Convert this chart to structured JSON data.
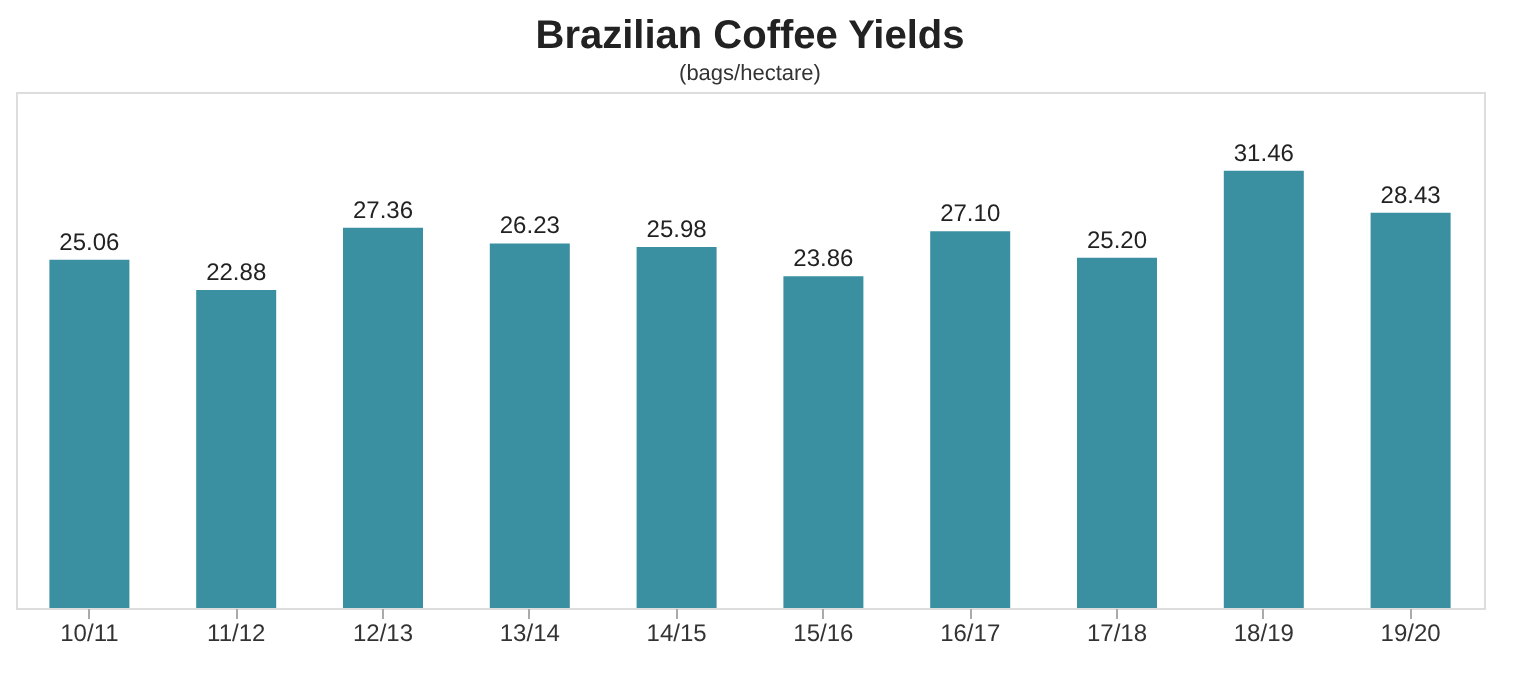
{
  "chart_data": {
    "type": "bar",
    "title": "Brazilian Coffee Yields",
    "subtitle": "(bags/hectare)",
    "categories": [
      "10/11",
      "11/12",
      "12/13",
      "13/14",
      "14/15",
      "15/16",
      "16/17",
      "17/18",
      "18/19",
      "19/20"
    ],
    "values": [
      25.06,
      22.88,
      27.36,
      26.23,
      25.98,
      23.86,
      27.1,
      25.2,
      31.46,
      28.43
    ],
    "value_labels": [
      "25.06",
      "22.88",
      "27.36",
      "26.23",
      "25.98",
      "23.86",
      "27.10",
      "25.20",
      "31.46",
      "28.43"
    ],
    "color": "#3a8fa0",
    "grid": false
  }
}
